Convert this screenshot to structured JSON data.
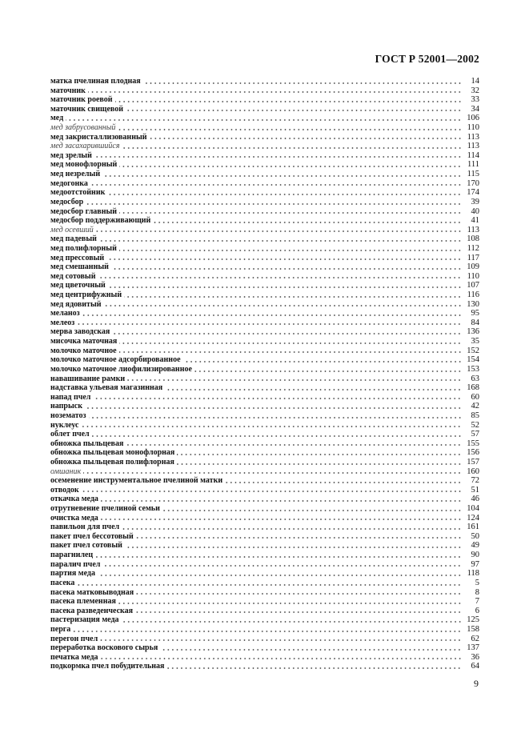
{
  "header": {
    "title": "ГОСТ Р 52001—2002"
  },
  "entries": [
    {
      "term": "матка пчелиная плодная",
      "page": "14",
      "italic": false
    },
    {
      "term": "маточник",
      "page": "32",
      "italic": false
    },
    {
      "term": "маточник роевой",
      "page": "33",
      "italic": false
    },
    {
      "term": "маточник свищевой",
      "page": "34",
      "italic": false
    },
    {
      "term": "мед",
      "page": "106",
      "italic": false
    },
    {
      "term": "мед забрусованный",
      "page": "110",
      "italic": true
    },
    {
      "term": "мед закристаллизованный",
      "page": "113",
      "italic": false
    },
    {
      "term": "мед засахарившийся",
      "page": "113",
      "italic": true
    },
    {
      "term": "мед зрелый",
      "page": "114",
      "italic": false
    },
    {
      "term": "мед монофлорный",
      "page": "111",
      "italic": false
    },
    {
      "term": "мед незрелый",
      "page": "115",
      "italic": false
    },
    {
      "term": "медогонка",
      "page": "170",
      "italic": false
    },
    {
      "term": "медоотстойник",
      "page": "174",
      "italic": false
    },
    {
      "term": "медосбор",
      "page": "39",
      "italic": false
    },
    {
      "term": "медосбор главный",
      "page": "40",
      "italic": false
    },
    {
      "term": "медосбор поддерживающий",
      "page": "41",
      "italic": false
    },
    {
      "term": "мед осевший",
      "page": "113",
      "italic": true
    },
    {
      "term": "мед падевый",
      "page": "108",
      "italic": false
    },
    {
      "term": "мед полифлорный",
      "page": "112",
      "italic": false
    },
    {
      "term": "мед прессовый",
      "page": "117",
      "italic": false
    },
    {
      "term": "мед смешанный",
      "page": "109",
      "italic": false
    },
    {
      "term": "мед сотовый",
      "page": "110",
      "italic": false
    },
    {
      "term": "мед цветочный",
      "page": "107",
      "italic": false
    },
    {
      "term": "мед центрифужный",
      "page": "116",
      "italic": false
    },
    {
      "term": "мед ядовитый",
      "page": "130",
      "italic": false
    },
    {
      "term": "меланоз",
      "page": "95",
      "italic": false
    },
    {
      "term": "мелеоз",
      "page": "84",
      "italic": false
    },
    {
      "term": "мерва заводская",
      "page": "136",
      "italic": false
    },
    {
      "term": "мисочка маточная",
      "page": "35",
      "italic": false
    },
    {
      "term": "молочко маточное",
      "page": "152",
      "italic": false
    },
    {
      "term": "молочко маточное адсорбированное",
      "page": "154",
      "italic": false
    },
    {
      "term": "молочко маточное лиофилизированное",
      "page": "153",
      "italic": false
    },
    {
      "term": "навашивание рамки",
      "page": "63",
      "italic": false
    },
    {
      "term": "надставка ульевая магазинная",
      "page": "168",
      "italic": false
    },
    {
      "term": "напад пчел",
      "page": "60",
      "italic": false
    },
    {
      "term": "напрыск",
      "page": "42",
      "italic": false
    },
    {
      "term": "нозематоз",
      "page": "85",
      "italic": false
    },
    {
      "term": "нуклеус",
      "page": "52",
      "italic": false
    },
    {
      "term": "облет пчел",
      "page": "57",
      "italic": false
    },
    {
      "term": "обножка пыльцевая",
      "page": "155",
      "italic": false
    },
    {
      "term": "обножка пыльцевая монофлорная",
      "page": "156",
      "italic": false
    },
    {
      "term": "обножка пыльцевая полифлорная",
      "page": "157",
      "italic": false
    },
    {
      "term": "омшаник",
      "page": "160",
      "italic": true
    },
    {
      "term": "осеменение инструментальное пчелиной матки",
      "page": "72",
      "italic": false
    },
    {
      "term": "отводок",
      "page": "51",
      "italic": false
    },
    {
      "term": "откачка меда",
      "page": "46",
      "italic": false
    },
    {
      "term": "отрутневение пчелиной семьи",
      "page": "104",
      "italic": false
    },
    {
      "term": "очистка меда",
      "page": "124",
      "italic": false
    },
    {
      "term": "павильон для пчел",
      "page": "161",
      "italic": false
    },
    {
      "term": "пакет пчел бессотовый",
      "page": "50",
      "italic": false
    },
    {
      "term": "пакет пчел сотовый",
      "page": "49",
      "italic": false
    },
    {
      "term": "парагнилец",
      "page": "90",
      "italic": false
    },
    {
      "term": "паралич пчел",
      "page": "97",
      "italic": false
    },
    {
      "term": "партия меда",
      "page": "118",
      "italic": false
    },
    {
      "term": "пасека",
      "page": "5",
      "italic": false
    },
    {
      "term": "пасека матковыводная",
      "page": "8",
      "italic": false
    },
    {
      "term": "пасека племенная",
      "page": "7",
      "italic": false
    },
    {
      "term": "пасека разведенческая",
      "page": "6",
      "italic": false
    },
    {
      "term": "пастеризация меда",
      "page": "125",
      "italic": false
    },
    {
      "term": "перга",
      "page": "158",
      "italic": false
    },
    {
      "term": "перегон пчел",
      "page": "62",
      "italic": false
    },
    {
      "term": "переработка воскового сырья",
      "page": "137",
      "italic": false
    },
    {
      "term": "печатка меда",
      "page": "36",
      "italic": false
    },
    {
      "term": "подкормка пчел побудительная",
      "page": "64",
      "italic": false
    }
  ],
  "footer": {
    "page_number": "9"
  }
}
